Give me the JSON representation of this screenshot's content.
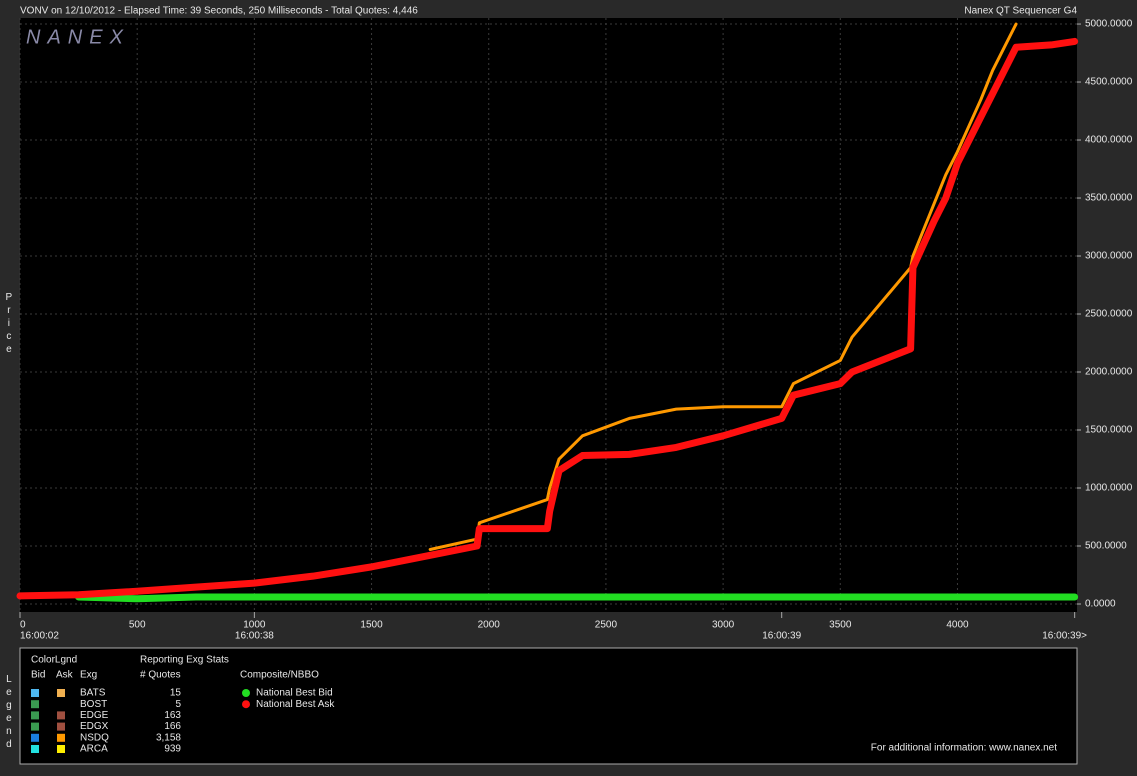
{
  "header": {
    "title": "VONV on 12/10/2012  -  Elapsed Time: 39 Seconds, 250 Milliseconds  -  Total Quotes: 4,446",
    "app": "Nanex QT Sequencer G4"
  },
  "chart_data": {
    "type": "line",
    "watermark": "NANEX",
    "y_label": "Price",
    "x": [
      0,
      250,
      500,
      750,
      1000,
      1250,
      1500,
      1750,
      1950,
      1960,
      2250,
      2260,
      2300,
      2400,
      2600,
      2800,
      3000,
      3250,
      3300,
      3500,
      3550,
      3800,
      3810,
      3900,
      3950,
      4000,
      4100,
      4150,
      4200,
      4250,
      4400,
      4500
    ],
    "series": [
      {
        "name": "NSDQ",
        "color": "#ff9900",
        "values": [
          null,
          null,
          null,
          null,
          null,
          null,
          null,
          470,
          560,
          700,
          900,
          1000,
          1250,
          1450,
          1600,
          1680,
          1700,
          1700,
          1900,
          2100,
          2300,
          2900,
          3000,
          3450,
          3700,
          3900,
          4350,
          4600,
          4800,
          5000,
          null,
          null
        ]
      },
      {
        "name": "National Best Bid",
        "color": "#22dd22",
        "values": [
          null,
          60,
          45,
          60,
          60,
          60,
          60,
          60,
          60,
          60,
          60,
          60,
          60,
          60,
          60,
          60,
          60,
          60,
          60,
          60,
          60,
          60,
          60,
          60,
          60,
          60,
          60,
          60,
          60,
          60,
          60,
          60
        ]
      },
      {
        "name": "National Best Ask",
        "color": "#ff1010",
        "values": [
          70,
          80,
          110,
          145,
          180,
          240,
          320,
          420,
          500,
          650,
          650,
          800,
          1150,
          1280,
          1290,
          1350,
          1450,
          1600,
          1800,
          1900,
          2000,
          2200,
          2900,
          3300,
          3500,
          3800,
          4200,
          4400,
          4600,
          4800,
          4820,
          4850
        ]
      }
    ],
    "xlim": [
      0,
      4510
    ],
    "xticks": [
      0,
      500,
      1000,
      1500,
      2000,
      2500,
      3000,
      3500,
      4000
    ],
    "ylim": [
      -69,
      5052
    ],
    "yticks": [
      {
        "value": 0,
        "label": "0.0000"
      },
      {
        "value": 500,
        "label": "500.0000"
      },
      {
        "value": 1000,
        "label": "1000.0000"
      },
      {
        "value": 1500,
        "label": "1500.0000"
      },
      {
        "value": 2000,
        "label": "2000.0000"
      },
      {
        "value": 2500,
        "label": "2500.0000"
      },
      {
        "value": 3000,
        "label": "3000.0000"
      },
      {
        "value": 3500,
        "label": "3500.0000"
      },
      {
        "value": 4000,
        "label": "4000.0000"
      },
      {
        "value": 4500,
        "label": "4500.0000"
      },
      {
        "value": 5000,
        "label": "5000.0000"
      }
    ],
    "time_ticks": [
      {
        "value": 0,
        "label": "16:00:02"
      },
      {
        "value": 1000,
        "label": "16:00:38"
      },
      {
        "value": 3250,
        "label": "16:00:39"
      },
      {
        "value": 4500,
        "label": "16:00:39>"
      }
    ],
    "grid": true
  },
  "legend": {
    "title": "Legend",
    "color_legend": "ColorLgnd",
    "columns": [
      "Bid",
      "Ask",
      "Exg"
    ],
    "stats_title": "Reporting Exg Stats",
    "quotes_header": "# Quotes",
    "composite_title": "Composite/NBBO",
    "exchanges": [
      {
        "name": "BATS",
        "bid_color": "#4fb8f0",
        "ask_color": "#f0b050",
        "quotes": "15"
      },
      {
        "name": "BOST",
        "bid_color": "#3a9a50",
        "ask_color": null,
        "quotes": "5"
      },
      {
        "name": "EDGE",
        "bid_color": "#3a9a50",
        "ask_color": "#a05040",
        "quotes": "163"
      },
      {
        "name": "EDGX",
        "bid_color": "#3a9a50",
        "ask_color": "#a05040",
        "quotes": "166"
      },
      {
        "name": "NSDQ",
        "bid_color": "#1a7fe0",
        "ask_color": "#ff9900",
        "quotes": "3,158"
      },
      {
        "name": "ARCA",
        "bid_color": "#22e0e0",
        "ask_color": "#ffee00",
        "quotes": "939"
      }
    ],
    "footer": "For additional information: www.nanex.net"
  }
}
